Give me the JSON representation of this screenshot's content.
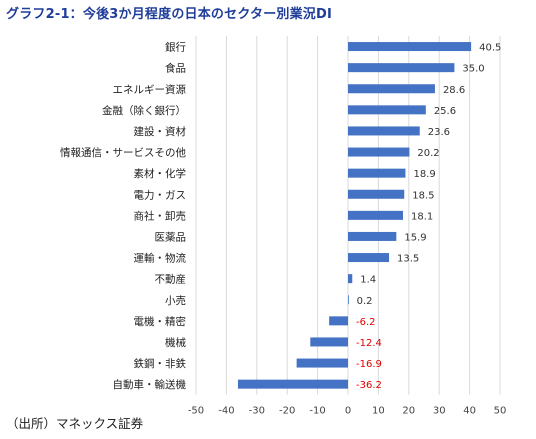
{
  "title": "グラフ2-1：今後3か月程度の日本のセクター別業況DI",
  "source": "（出所）マネックス証券",
  "colors": {
    "bar": "#4472c4",
    "positive_label": "#333333",
    "negative_label": "#e00000",
    "grid": "#d9d9d9",
    "title": "#1f3d9a"
  },
  "chart_data": {
    "type": "bar",
    "orientation": "horizontal",
    "title": "グラフ2-1：今後3か月程度の日本のセクター別業況DI",
    "xlim": [
      -50,
      50
    ],
    "xticks": [
      -50,
      -40,
      -30,
      -20,
      -10,
      0,
      10,
      20,
      30,
      40,
      50
    ],
    "grid": true,
    "categories": [
      "銀行",
      "食品",
      "エネルギー資源",
      "金融（除く銀行）",
      "建設・資材",
      "情報通信・サービスその他",
      "素材・化学",
      "電力・ガス",
      "商社・卸売",
      "医薬品",
      "運輸・物流",
      "不動産",
      "小売",
      "電機・精密",
      "機械",
      "鉄鋼・非鉄",
      "自動車・輸送機"
    ],
    "values": [
      40.5,
      35.0,
      28.6,
      25.6,
      23.6,
      20.2,
      18.9,
      18.5,
      18.1,
      15.9,
      13.5,
      1.4,
      0.2,
      -6.2,
      -12.4,
      -16.9,
      -36.2
    ],
    "value_labels": [
      "40.5",
      "35.0",
      "28.6",
      "25.6",
      "23.6",
      "20.2",
      "18.9",
      "18.5",
      "18.1",
      "15.9",
      "13.5",
      "1.4",
      "0.2",
      "-6.2",
      "-12.4",
      "-16.9",
      "-36.2"
    ]
  }
}
